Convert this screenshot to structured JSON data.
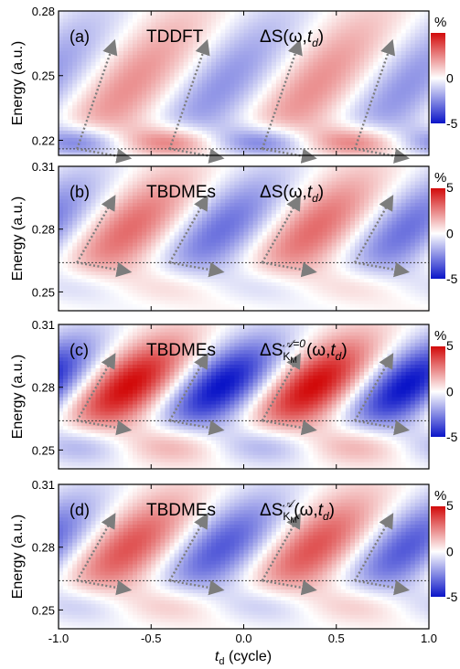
{
  "chart_data": {
    "type": "heatmap",
    "x_axis": {
      "label": "t_d (cycle)",
      "label_main": "t",
      "label_sub": "d",
      "label_rest": " (cycle)",
      "range": [
        -1.0,
        1.0
      ],
      "ticks": [
        "-1.0",
        "-0.5",
        "0.0",
        "0.5",
        "1.0"
      ]
    },
    "y_label": "Energy (a.u.)",
    "colorbar": {
      "unit": "%",
      "ticks": [
        "5",
        "0",
        "-5"
      ],
      "range": [
        -5,
        5
      ],
      "colors": {
        "negative": "#0a14c8",
        "zero": "#ffffff",
        "positive": "#d20a0a"
      }
    },
    "panels": [
      {
        "label": "(a)",
        "method": "TDDFT",
        "quantity": "ΔS(ω,t_d)",
        "ylim": [
          0.213,
          0.28
        ],
        "yticks": [
          "0.28",
          "0.25",
          "0.22"
        ],
        "ytick_values": [
          0.28,
          0.25,
          0.22
        ],
        "cbar_top_tick": "",
        "dashed_line_energy": 0.216,
        "amplitude": 0.45,
        "blob_center": 0.245,
        "blob_width": 0.03,
        "low_center": 0.219,
        "low_amp": 0.75,
        "low_width": 0.008
      },
      {
        "label": "(b)",
        "method": "TBDMEs",
        "quantity": "ΔS(ω,t_d)",
        "ylim": [
          0.241,
          0.31
        ],
        "yticks": [
          "0.31",
          "0.28",
          "0.25"
        ],
        "ytick_values": [
          0.31,
          0.28,
          0.25
        ],
        "cbar_top_tick": "5",
        "dashed_line_energy": 0.264,
        "amplitude": 0.6,
        "blob_center": 0.28,
        "blob_width": 0.022,
        "low_center": 0.253,
        "low_amp": 0.35,
        "low_width": 0.01
      },
      {
        "label": "(c)",
        "method": "TBDMEs",
        "quantity": "ΔS_KM^{A=0}(ω,t_d)",
        "ylim": [
          0.241,
          0.31
        ],
        "yticks": [
          "0.31",
          "0.28",
          "0.25"
        ],
        "ytick_values": [
          0.31,
          0.28,
          0.25
        ],
        "cbar_top_tick": "5",
        "dashed_line_energy": 0.264,
        "amplitude": 1.0,
        "blob_center": 0.281,
        "blob_width": 0.018,
        "low_center": 0.253,
        "low_amp": 0.5,
        "low_width": 0.01
      },
      {
        "label": "(d)",
        "method": "TBDMEs",
        "quantity": "ΔS_KM^{A}(ω,t_d)",
        "ylim": [
          0.241,
          0.31
        ],
        "yticks": [
          "0.31",
          "0.28",
          "0.25"
        ],
        "ytick_values": [
          0.31,
          0.28,
          0.25
        ],
        "cbar_top_tick": "5",
        "dashed_line_energy": 0.264,
        "amplitude": 0.7,
        "blob_center": 0.28,
        "blob_width": 0.02,
        "low_center": 0.253,
        "low_amp": 0.4,
        "low_width": 0.01
      }
    ],
    "arrow_origins_td": [
      -0.9,
      -0.4,
      0.1,
      0.6
    ],
    "arrow_up_dx_td": 0.2,
    "arrow_down_dx_td": 0.28
  }
}
